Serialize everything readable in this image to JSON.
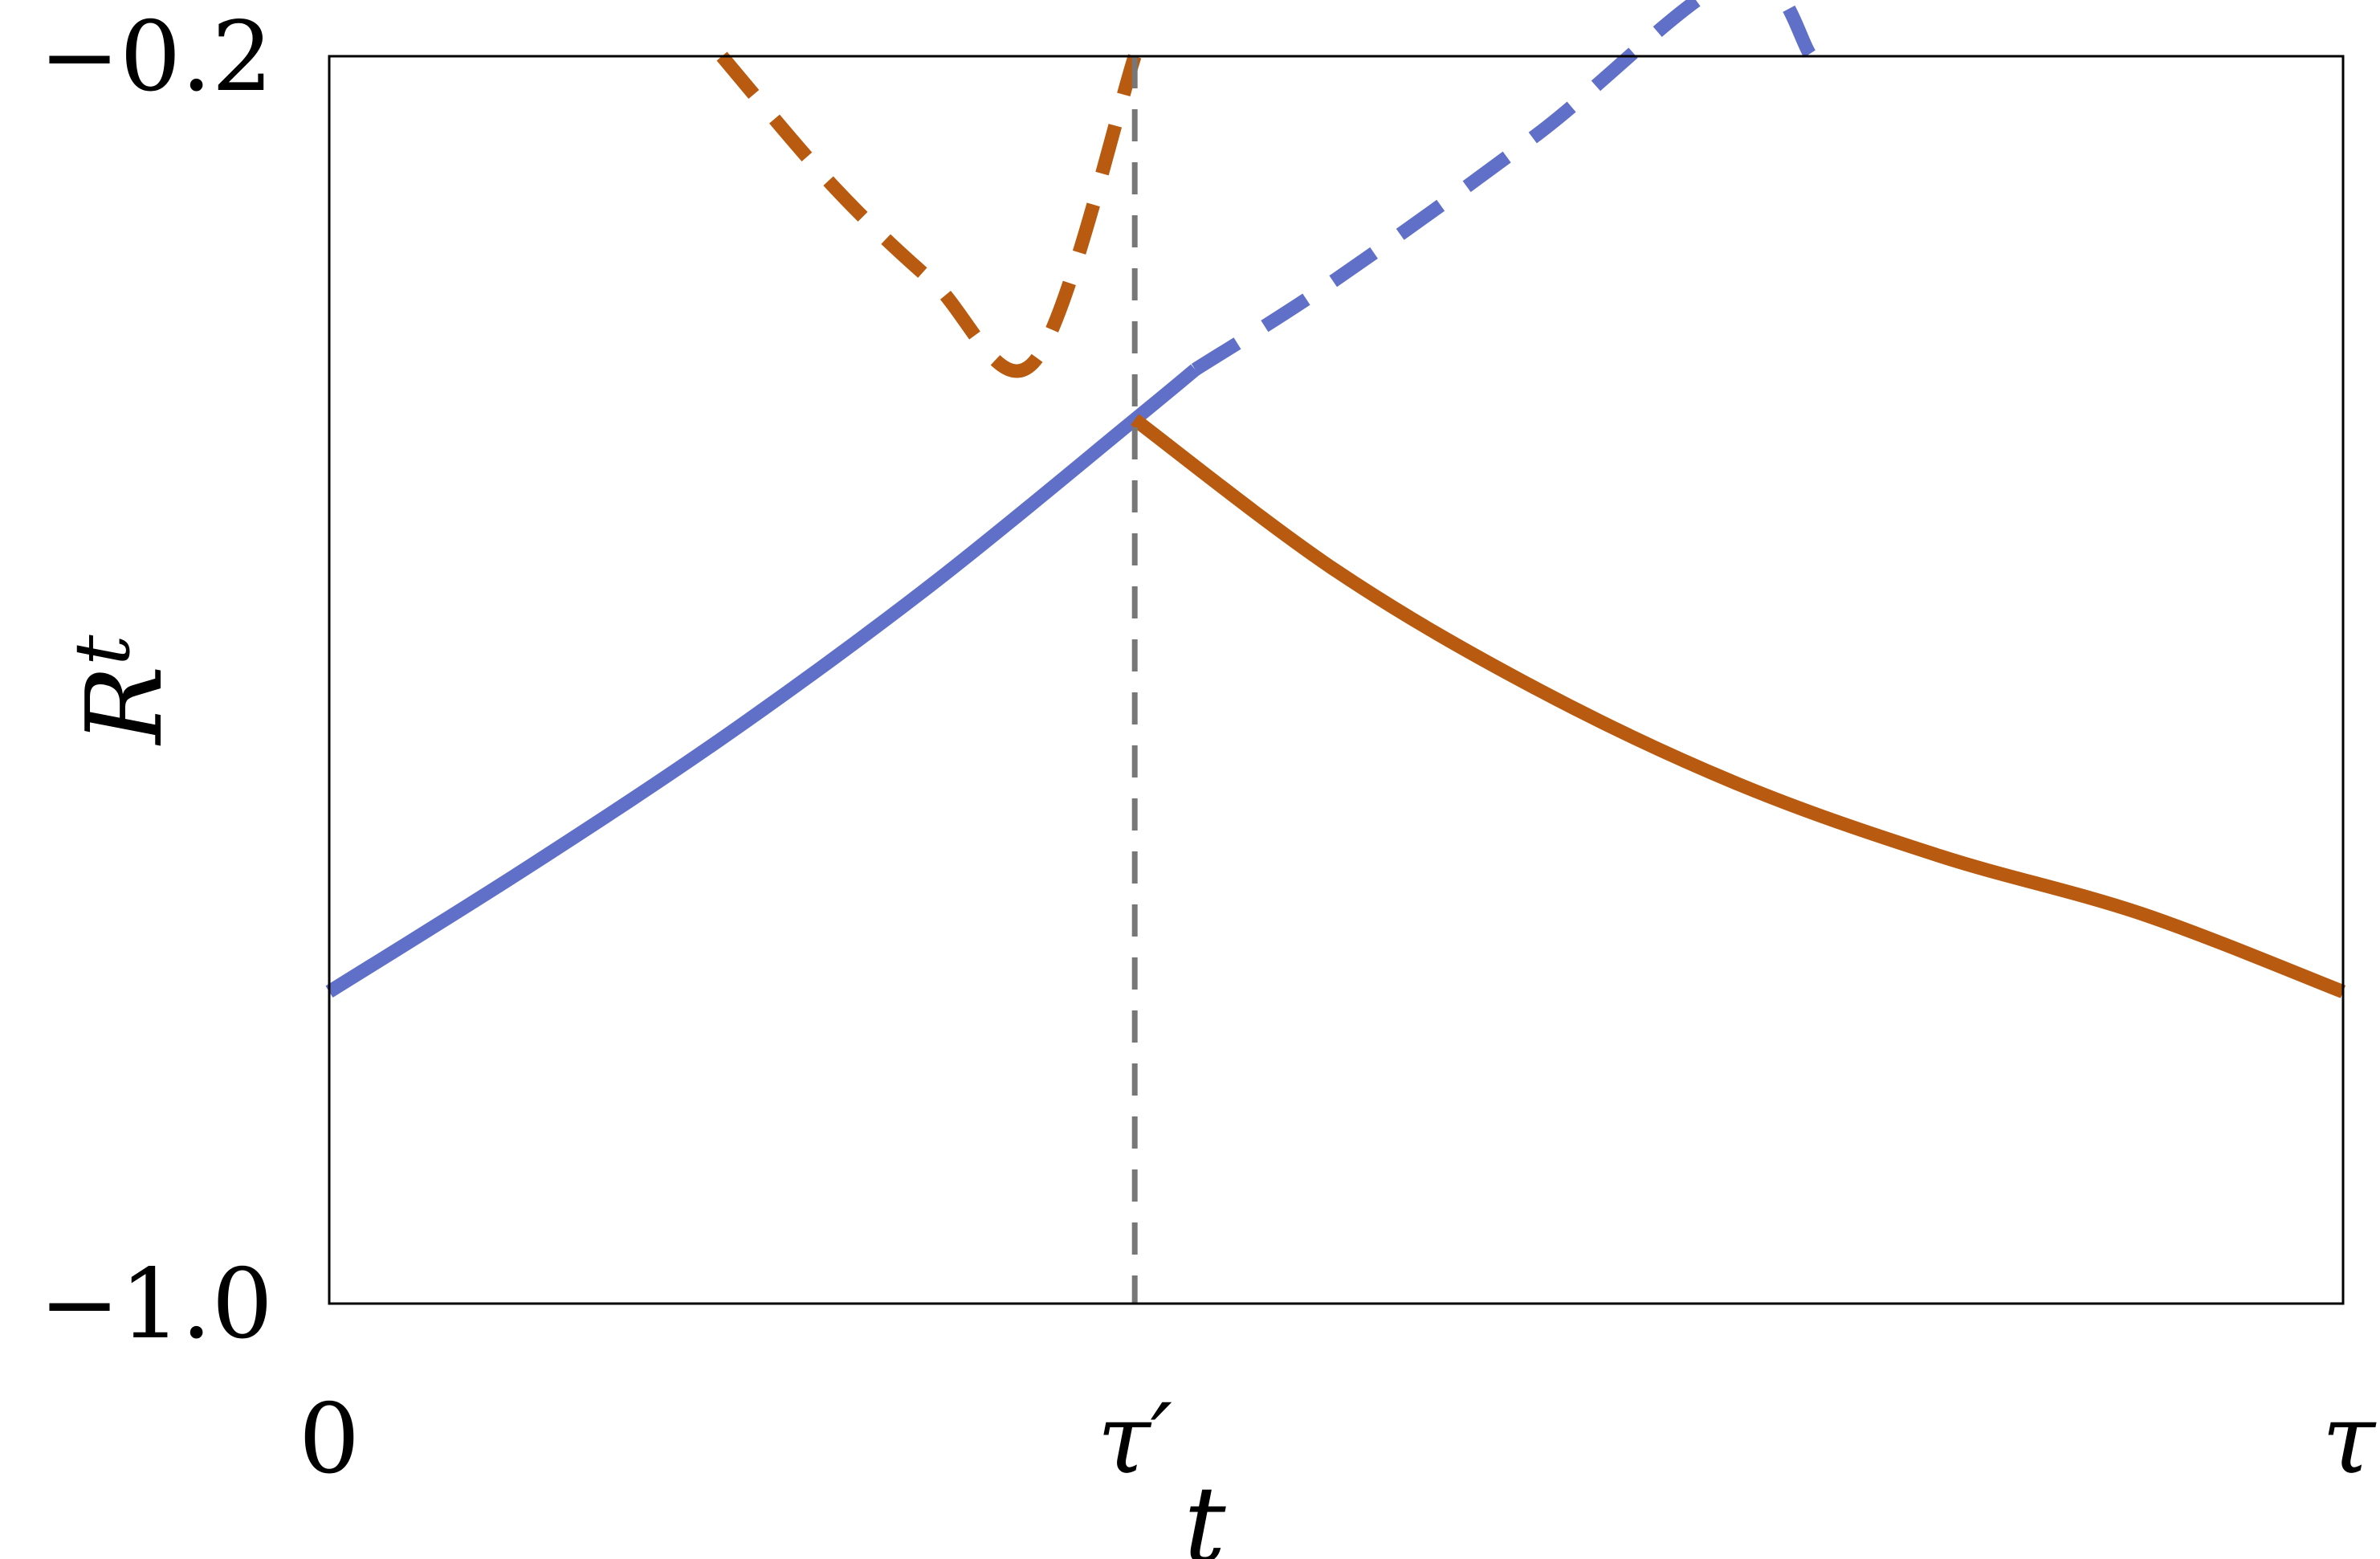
{
  "chart_data": {
    "type": "line",
    "xlabel": "t",
    "ylabel": "R",
    "ylabel_subscript": "t",
    "xlim": [
      0,
      1
    ],
    "ylim": [
      -1.0,
      -0.2
    ],
    "x_ticks": [
      {
        "value": 0,
        "label": "0"
      },
      {
        "value": 0.4,
        "label": "τ′"
      },
      {
        "value": 1,
        "label": "τ"
      }
    ],
    "y_ticks": [
      {
        "value": -0.2,
        "label": "−0.2"
      },
      {
        "value": -1.0,
        "label": "−1.0"
      }
    ],
    "grid": false,
    "vline": {
      "x": 0.4,
      "style": "dashed",
      "color": "#777777"
    },
    "series": [
      {
        "color": "#6070c8",
        "segments": [
          {
            "style": "solid",
            "x": [
              0,
              0.1,
              0.2,
              0.3,
              0.4,
              0.43
            ],
            "y": [
              -0.8,
              -0.719,
              -0.633,
              -0.538,
              -0.433,
              -0.401
            ]
          },
          {
            "style": "dashed",
            "x": [
              0.43,
              0.5,
              0.6,
              0.7,
              0.736
            ],
            "y": [
              -0.401,
              -0.343,
              -0.25,
              -0.149,
              -0.2
            ]
          }
        ]
      },
      {
        "color": "#b85a0f",
        "segments": [
          {
            "style": "dashed",
            "x": [
              0.195,
              0.25,
              0.3,
              0.35,
              0.4
            ],
            "y": [
              -0.2,
              -0.283,
              -0.345,
              -0.396,
              -0.433
            ]
          },
          {
            "style": "solid",
            "x": [
              0.4,
              0.5,
              0.6,
              0.7,
              0.8,
              0.9,
              1.0
            ],
            "y": [
              -0.433,
              -0.53,
              -0.606,
              -0.667,
              -0.713,
              -0.75,
              -0.8
            ]
          }
        ]
      }
    ]
  }
}
